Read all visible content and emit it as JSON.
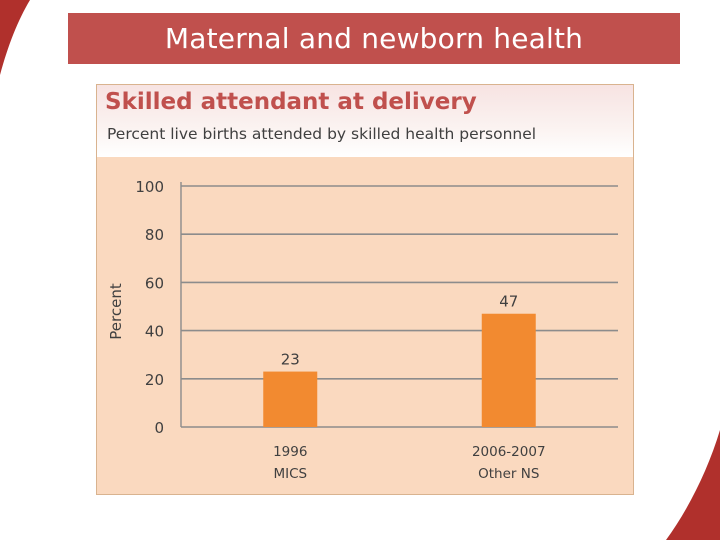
{
  "slide": {
    "title": "Maternal and newborn health"
  },
  "colors": {
    "accent": "#c0504d",
    "bar": "#f28a30",
    "panel": "#fad9bf",
    "grid": "#8c8c8c"
  },
  "chart_data": {
    "type": "bar",
    "title": "Skilled attendant at delivery",
    "subtitle": "Percent live births attended by skilled health personnel",
    "ylabel": "Percent",
    "xlabel": "",
    "ylim": [
      0,
      100
    ],
    "yticks": [
      0,
      20,
      40,
      60,
      80,
      100
    ],
    "grid": true,
    "categories": [
      {
        "line1": "1996",
        "line2": "MICS"
      },
      {
        "line1": "2006-2007",
        "line2": "Other NS"
      }
    ],
    "values": [
      23,
      47
    ],
    "data_labels": [
      "23",
      "47"
    ]
  }
}
